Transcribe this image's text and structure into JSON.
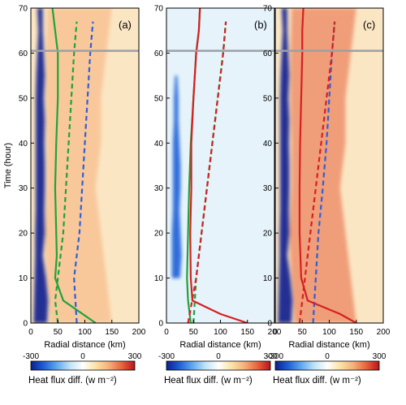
{
  "chart_data": {
    "type": "heatmap",
    "shared": {
      "xlabel": "Radial distance (km)",
      "ylabel": "Time (hour)",
      "xlim": [
        0,
        200
      ],
      "ylim": [
        0,
        70
      ],
      "xticks": [
        0,
        50,
        100,
        150,
        200
      ],
      "yticks": [
        0,
        10,
        20,
        30,
        40,
        50,
        60,
        70
      ],
      "hline_y": 60.5,
      "colorbar": {
        "label": "Heat flux diff. (w m⁻²)",
        "range": [
          -300,
          300
        ],
        "ticks": [
          -300,
          0,
          300
        ],
        "colors": [
          "#0a1f8f",
          "#1f5fd6",
          "#5fa8ef",
          "#bfe3f7",
          "#ffffff",
          "#fbe3a6",
          "#f6b07a",
          "#e8643c",
          "#b8141c"
        ]
      }
    },
    "panels": [
      {
        "label": "(a)",
        "inner_band": {
          "t": [
            0,
            5,
            10,
            15,
            20,
            25,
            30,
            35,
            40,
            45,
            50,
            55,
            60,
            65,
            70
          ],
          "r_left": [
            5,
            6,
            7,
            8,
            8,
            9,
            9,
            9,
            9,
            9,
            9,
            10,
            12,
            14,
            12
          ],
          "r_right": [
            30,
            32,
            28,
            22,
            26,
            25,
            26,
            26,
            25,
            26,
            24,
            26,
            24,
            22,
            22
          ],
          "value": -280
        },
        "warm_band": {
          "t": [
            0,
            10,
            20,
            30,
            40,
            50,
            60,
            70
          ],
          "r_left": [
            35,
            30,
            25,
            30,
            30,
            28,
            28,
            30
          ],
          "r_right": [
            150,
            140,
            130,
            120,
            130,
            130,
            140,
            150
          ],
          "value": 180
        },
        "green_line": {
          "t": [
            0,
            5,
            10,
            15,
            20,
            30,
            40,
            50,
            60,
            65,
            70
          ],
          "r": [
            120,
            60,
            45,
            48,
            47,
            45,
            47,
            50,
            50,
            45,
            40
          ]
        },
        "green_dashed": {
          "t": [
            0,
            5,
            10,
            20,
            30,
            40,
            50,
            60,
            67
          ],
          "r": [
            50,
            45,
            50,
            60,
            65,
            70,
            75,
            80,
            85
          ]
        },
        "blue_dashed": {
          "t": [
            0,
            10,
            20,
            30,
            40,
            50,
            60,
            67
          ],
          "r": [
            85,
            80,
            90,
            95,
            100,
            105,
            110,
            115
          ]
        },
        "red_line": {
          "t": [],
          "r": []
        },
        "red_dashed": {
          "t": [],
          "r": []
        }
      },
      {
        "label": "(b)",
        "inner_band": {
          "t": [
            10,
            15,
            20,
            25,
            30,
            35,
            40,
            45,
            50,
            55
          ],
          "r_left": [
            10,
            10,
            10,
            12,
            12,
            12,
            12,
            14,
            14,
            16
          ],
          "r_right": [
            25,
            28,
            26,
            24,
            26,
            26,
            24,
            22,
            22,
            20
          ],
          "value": -200
        },
        "warm_band": {
          "t": [],
          "r_left": [],
          "r_right": [],
          "value": 0
        },
        "green_line": {
          "t": [
            0,
            5,
            10,
            20,
            30,
            40,
            50,
            60,
            65,
            70
          ],
          "r": [
            45,
            40,
            38,
            40,
            42,
            45,
            50,
            55,
            60,
            62
          ]
        },
        "green_dashed": {
          "t": [
            0,
            10,
            20,
            30,
            40,
            50,
            60,
            67
          ],
          "r": [
            50,
            55,
            65,
            75,
            85,
            95,
            105,
            110
          ]
        },
        "blue_dashed": {
          "t": [],
          "r": []
        },
        "red_line": {
          "t": [
            0,
            2,
            5,
            10,
            20,
            30,
            40,
            50,
            60,
            65,
            70
          ],
          "r": [
            150,
            100,
            48,
            45,
            44,
            46,
            46,
            50,
            55,
            60,
            62
          ]
        },
        "red_dashed": {
          "t": [
            0,
            10,
            20,
            30,
            40,
            50,
            60,
            67
          ],
          "r": [
            40,
            55,
            65,
            75,
            85,
            95,
            105,
            110
          ]
        }
      },
      {
        "label": "(c)",
        "inner_band": {
          "t": [
            0,
            5,
            10,
            15,
            20,
            25,
            30,
            35,
            40,
            45,
            50,
            55,
            60,
            65,
            70
          ],
          "r_left": [
            5,
            6,
            7,
            8,
            8,
            9,
            9,
            9,
            9,
            9,
            9,
            10,
            12,
            14,
            12
          ],
          "r_right": [
            30,
            32,
            28,
            22,
            26,
            25,
            26,
            26,
            25,
            26,
            24,
            26,
            24,
            22,
            22
          ],
          "value": -280
        },
        "warm_band": {
          "t": [
            0,
            10,
            20,
            30,
            40,
            50,
            60,
            70
          ],
          "r_left": [
            35,
            30,
            25,
            30,
            30,
            28,
            28,
            30
          ],
          "r_right": [
            150,
            140,
            130,
            120,
            130,
            130,
            140,
            150
          ],
          "value": 200
        },
        "green_line": {
          "t": [],
          "r": []
        },
        "green_dashed": {
          "t": [],
          "r": []
        },
        "blue_dashed": {
          "t": [
            0,
            10,
            20,
            30,
            40,
            50,
            60,
            67
          ],
          "r": [
            70,
            75,
            80,
            88,
            95,
            100,
            105,
            110
          ]
        },
        "red_line": {
          "t": [
            0,
            2,
            5,
            10,
            20,
            30,
            40,
            50,
            60,
            65,
            70
          ],
          "r": [
            150,
            120,
            60,
            48,
            45,
            45,
            46,
            48,
            50,
            50,
            52
          ]
        },
        "red_dashed": {
          "t": [
            0,
            10,
            20,
            30,
            40,
            50,
            60,
            67
          ],
          "r": [
            45,
            55,
            65,
            75,
            85,
            95,
            105,
            110
          ]
        }
      }
    ]
  }
}
